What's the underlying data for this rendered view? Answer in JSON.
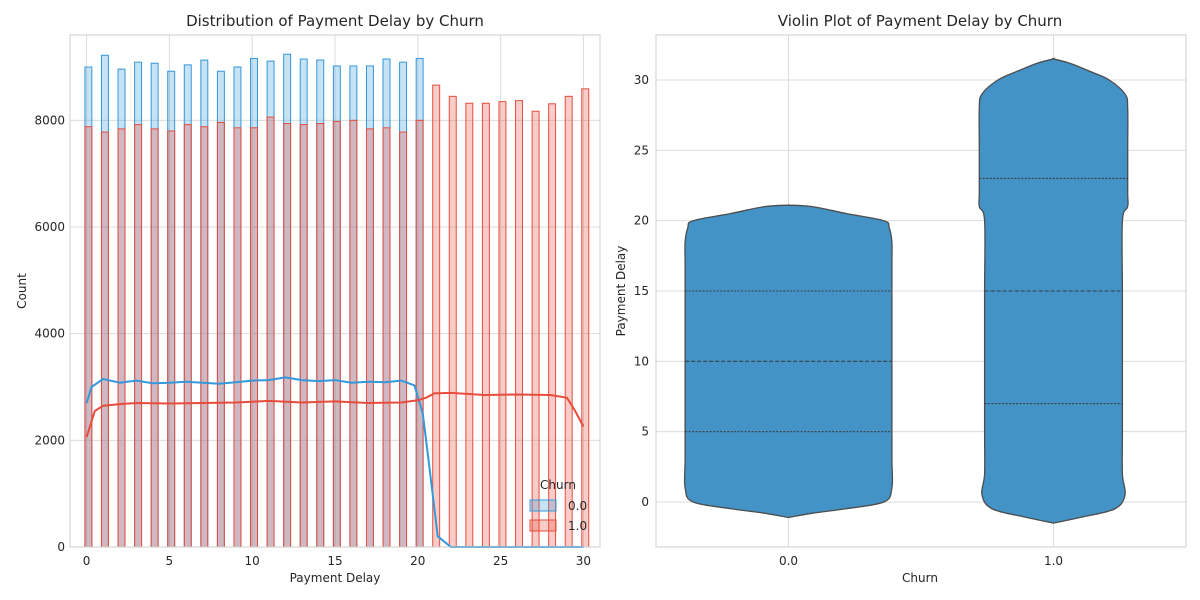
{
  "chart_data": [
    {
      "type": "histogram",
      "title": "Distribution of Payment Delay by Churn",
      "xlabel": "Payment Delay",
      "ylabel": "Count",
      "xlim": [
        -1,
        31
      ],
      "ylim": [
        0,
        9600
      ],
      "xticks": [
        0,
        5,
        10,
        15,
        20,
        25,
        30
      ],
      "yticks": [
        0,
        2000,
        4000,
        6000,
        8000
      ],
      "grid": true,
      "legend": {
        "title": "Churn",
        "position": "lower-right"
      },
      "series": [
        {
          "name": "0.0",
          "color": "#3498db",
          "x": [
            0,
            1,
            2,
            3,
            4,
            5,
            6,
            7,
            8,
            9,
            10,
            11,
            12,
            13,
            14,
            15,
            16,
            17,
            18,
            19,
            20
          ],
          "values": [
            9000,
            9220,
            8960,
            9090,
            9070,
            8920,
            9040,
            9130,
            8920,
            9000,
            9160,
            9110,
            9240,
            9150,
            9130,
            9020,
            9020,
            9020,
            9150,
            9090,
            9160
          ]
        },
        {
          "name": "1.0",
          "color": "#e74c3c",
          "x": [
            0,
            1,
            2,
            3,
            4,
            5,
            6,
            7,
            8,
            9,
            10,
            11,
            12,
            13,
            14,
            15,
            16,
            17,
            18,
            19,
            20,
            21,
            22,
            23,
            24,
            25,
            26,
            27,
            28,
            29,
            30
          ],
          "values": [
            7880,
            7780,
            7840,
            7920,
            7840,
            7800,
            7920,
            7880,
            7960,
            7860,
            7860,
            8060,
            7940,
            7920,
            7940,
            7980,
            8000,
            7840,
            7860,
            7780,
            8000,
            8660,
            8450,
            8320,
            8320,
            8350,
            8370,
            8170,
            8310,
            8450,
            8590
          ]
        }
      ],
      "kde": [
        {
          "name": "0.0",
          "x": [
            0,
            0.3,
            1,
            2,
            3,
            4,
            5,
            6,
            7,
            8,
            9,
            10,
            11,
            12,
            13,
            14,
            15,
            16,
            17,
            18,
            19,
            19.8,
            20.3,
            20.7,
            21.2,
            22,
            23,
            30
          ],
          "values": [
            2700,
            3000,
            3150,
            3080,
            3120,
            3070,
            3080,
            3100,
            3080,
            3060,
            3090,
            3120,
            3130,
            3180,
            3130,
            3110,
            3130,
            3080,
            3100,
            3090,
            3120,
            3030,
            2500,
            1500,
            200,
            0,
            0,
            0
          ]
        },
        {
          "name": "1.0",
          "x": [
            0,
            0.5,
            1,
            2,
            3,
            5,
            7,
            9,
            11,
            13,
            15,
            17,
            19,
            20,
            20.5,
            21,
            22,
            24,
            26,
            28,
            29,
            29.5,
            30
          ],
          "values": [
            2060,
            2550,
            2650,
            2680,
            2700,
            2690,
            2700,
            2710,
            2740,
            2710,
            2730,
            2700,
            2710,
            2750,
            2800,
            2880,
            2890,
            2850,
            2860,
            2850,
            2800,
            2550,
            2260
          ]
        }
      ]
    },
    {
      "type": "violin",
      "title": "Violin Plot of Payment Delay by Churn",
      "xlabel": "Churn",
      "ylabel": "Payment Delay",
      "ylim": [
        -3.2,
        33.2
      ],
      "yticks": [
        0,
        5,
        10,
        15,
        20,
        25,
        30
      ],
      "grid": true,
      "color": "#4393c7",
      "categories": [
        "0.0",
        "1.0"
      ],
      "violins": [
        {
          "category": "0.0",
          "quartiles": [
            5,
            10,
            15
          ],
          "profile_y": [
            -1.1,
            -0.8,
            -0.5,
            0,
            1,
            3,
            5,
            8,
            10,
            12,
            15,
            17,
            18.5,
            19.5,
            20,
            20.5,
            21,
            21.1
          ],
          "profile_halfwidth": [
            0,
            0.09,
            0.21,
            0.36,
            0.39,
            0.39,
            0.39,
            0.39,
            0.39,
            0.39,
            0.39,
            0.39,
            0.39,
            0.38,
            0.36,
            0.22,
            0.09,
            0
          ]
        },
        {
          "category": "1.0",
          "quartiles": [
            7,
            15,
            23
          ],
          "profile_y": [
            -1.5,
            -1.1,
            -0.5,
            0.5,
            2,
            5,
            10,
            15,
            20,
            21,
            22,
            25,
            28,
            29,
            30,
            30.6,
            31.2,
            31.5
          ],
          "profile_halfwidth": [
            0,
            0.1,
            0.23,
            0.27,
            0.26,
            0.26,
            0.26,
            0.26,
            0.26,
            0.28,
            0.28,
            0.28,
            0.28,
            0.27,
            0.21,
            0.14,
            0.06,
            0
          ]
        }
      ]
    }
  ]
}
